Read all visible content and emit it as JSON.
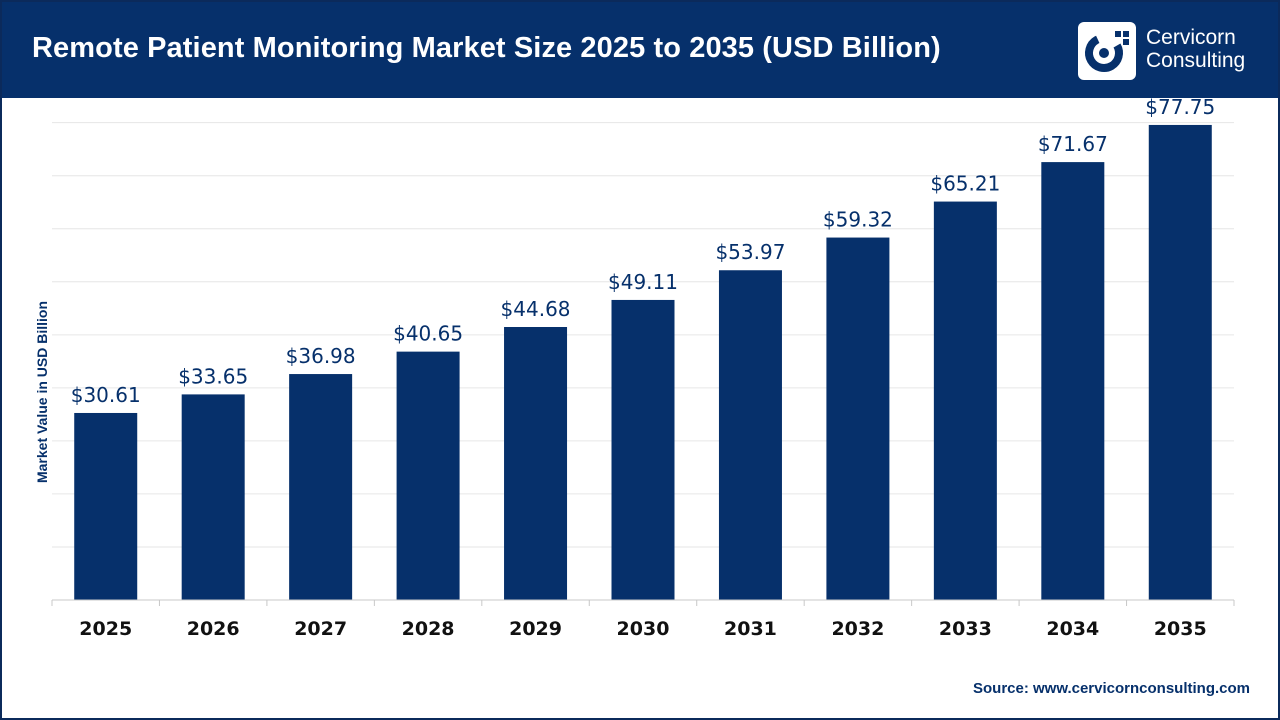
{
  "header": {
    "title": "Remote Patient Monitoring Market Size 2025 to 2035 (USD Billion)",
    "background": "#06306b"
  },
  "logo": {
    "name": "cervicorn-logo-icon",
    "line1": "Cervicorn",
    "line2": "Consulting"
  },
  "footer": {
    "source": "Source: www.cervicornconsulting.com"
  },
  "colors": {
    "bar": "#06306b",
    "grid": "#e6e6e6",
    "axis": "#c8c8c8"
  },
  "chart_data": {
    "type": "bar",
    "title": "Remote Patient Monitoring Market Size 2025 to 2035 (USD Billion)",
    "xlabel": "",
    "ylabel": "Market Value in USD Billion",
    "categories": [
      "2025",
      "2026",
      "2027",
      "2028",
      "2029",
      "2030",
      "2031",
      "2032",
      "2033",
      "2034",
      "2035"
    ],
    "values": [
      30.61,
      33.65,
      36.98,
      40.65,
      44.68,
      49.11,
      53.97,
      59.32,
      65.21,
      71.67,
      77.75
    ],
    "data_labels": [
      "$30.61",
      "$33.65",
      "$36.98",
      "$40.65",
      "$44.68",
      "$49.11",
      "$53.97",
      "$59.32",
      "$65.21",
      "$71.67",
      "$77.75"
    ],
    "ylim": [
      0,
      90
    ],
    "grid": true,
    "y_tick_labels_shown": false,
    "legend": "none"
  }
}
